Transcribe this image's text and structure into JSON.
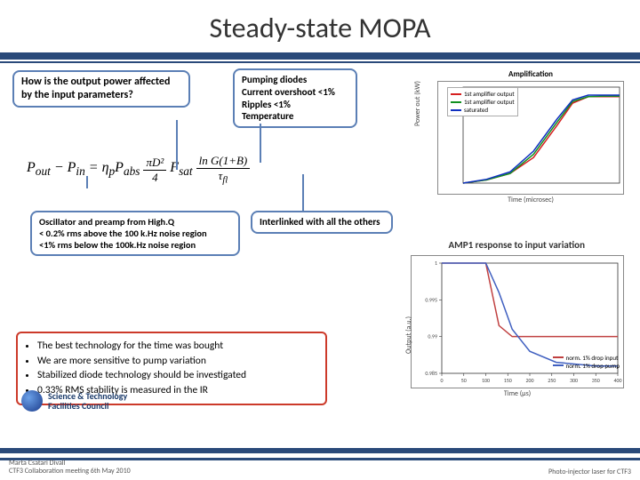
{
  "title": "Steady-state MOPA",
  "callouts": {
    "q": "How is the output power affected by the input parameters?",
    "pump": {
      "l1": "Pumping diodes",
      "l2": "Current overshoot <1%",
      "l3": "Ripples <1%",
      "l4": "Temperature"
    },
    "osc": {
      "l1": "Oscillator and preamp from High.Q",
      "l2": "< 0.2% rms above the 100 k.Hz noise region",
      "l3": "<1% rms below the 100k.Hz noise region"
    },
    "inter": "Interlinked with all the others"
  },
  "bullets": {
    "b1": "The best technology for the time was bought",
    "b2": "We are more sensitive to pump variation",
    "b3": "Stabilized diode technology should be investigated",
    "b4": "0.33% RMS stability is measured in the IR"
  },
  "chart1": {
    "title": "Amplification",
    "xlabel": "Time (microsec)",
    "ylabel": "Power out (kW)",
    "xlim": [
      0,
      2.0
    ],
    "ylim": [
      0,
      30
    ],
    "bg": "#ffffff",
    "axis_color": "#333333",
    "series": [
      {
        "name": "1st amplifier output",
        "color": "#d62020",
        "data": [
          [
            0,
            0
          ],
          [
            0.3,
            1
          ],
          [
            0.6,
            3
          ],
          [
            0.9,
            8
          ],
          [
            1.2,
            18
          ],
          [
            1.4,
            25
          ],
          [
            1.6,
            27
          ],
          [
            1.8,
            27
          ],
          [
            2.0,
            27
          ]
        ]
      },
      {
        "name": "1st amplifier output",
        "color": "#109020",
        "data": [
          [
            0,
            0
          ],
          [
            0.3,
            1
          ],
          [
            0.6,
            3
          ],
          [
            0.9,
            9
          ],
          [
            1.2,
            19
          ],
          [
            1.4,
            25.5
          ],
          [
            1.6,
            27
          ],
          [
            1.8,
            27.2
          ],
          [
            2.0,
            27.2
          ]
        ]
      },
      {
        "name": "saturated",
        "color": "#1030c0",
        "data": [
          [
            0,
            0
          ],
          [
            0.3,
            1.2
          ],
          [
            0.6,
            3.5
          ],
          [
            0.9,
            10
          ],
          [
            1.2,
            20
          ],
          [
            1.4,
            26
          ],
          [
            1.6,
            27.5
          ],
          [
            1.8,
            27.5
          ],
          [
            2.0,
            27.5
          ]
        ]
      }
    ]
  },
  "chart2": {
    "title": "AMP1 response to input variation",
    "xlabel": "Time (μs)",
    "ylabel": "Output (a.u.)",
    "xlim": [
      0,
      400
    ],
    "ylim": [
      0.985,
      1.0
    ],
    "yticks": [
      0.985,
      0.99,
      0.995,
      1.0
    ],
    "xticks": [
      0,
      50,
      100,
      150,
      200,
      250,
      300,
      350,
      400
    ],
    "bg": "#ffffff",
    "series": [
      {
        "name": "norm. 1% drop input",
        "color": "#c04040",
        "data": [
          [
            0,
            1.0
          ],
          [
            50,
            1.0
          ],
          [
            100,
            1.0
          ],
          [
            130,
            0.9915
          ],
          [
            160,
            0.99
          ],
          [
            200,
            0.99
          ],
          [
            300,
            0.99
          ],
          [
            400,
            0.99
          ]
        ]
      },
      {
        "name": "norm. 1% drop pump",
        "color": "#4060c0",
        "data": [
          [
            0,
            1.0
          ],
          [
            50,
            1.0
          ],
          [
            100,
            1.0
          ],
          [
            130,
            0.996
          ],
          [
            160,
            0.991
          ],
          [
            200,
            0.988
          ],
          [
            260,
            0.9865
          ],
          [
            350,
            0.986
          ],
          [
            400,
            0.986
          ]
        ]
      }
    ]
  },
  "logo_text": "Science & Technology Facilities Council",
  "footer": {
    "l1": "Marta Csatari Divall",
    "l2": "CTF3 Collaboration meeting 6th May 2010",
    "right": "Photo-injector laser for CTF3"
  },
  "colors": {
    "blue": "#5b7fb5",
    "red": "#cc3a2a",
    "darkblue": "#2a4a7a"
  }
}
